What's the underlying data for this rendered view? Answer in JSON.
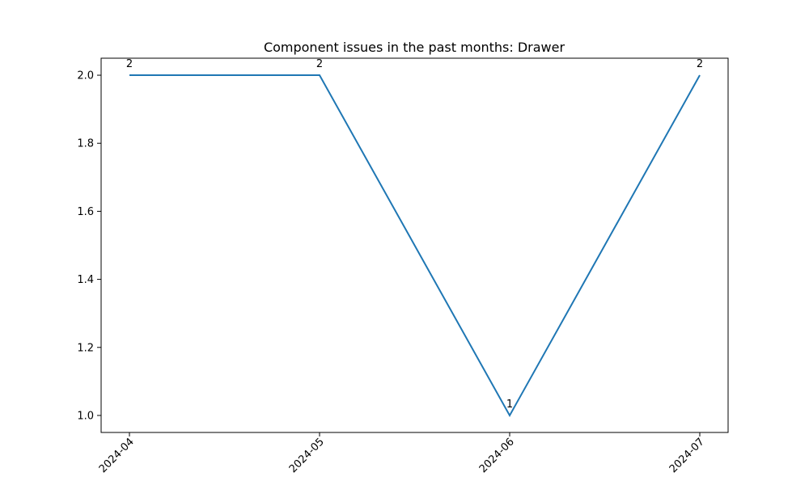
{
  "chart_data": {
    "type": "line",
    "title": "Component issues in the past months: Drawer",
    "xlabel": "",
    "ylabel": "",
    "x": [
      "2024-04",
      "2024-05",
      "2024-06",
      "2024-07"
    ],
    "series": [
      {
        "values": [
          2,
          2,
          1,
          2
        ],
        "color": "#1f77b4"
      }
    ],
    "data_labels": [
      "2",
      "2",
      "1",
      "2"
    ],
    "yticks": [
      "1.0",
      "1.2",
      "1.4",
      "1.6",
      "1.8",
      "2.0"
    ],
    "ylim": [
      0.95,
      2.05
    ],
    "grid": false,
    "legend": "none",
    "xtick_rotation": "45 degrees"
  }
}
